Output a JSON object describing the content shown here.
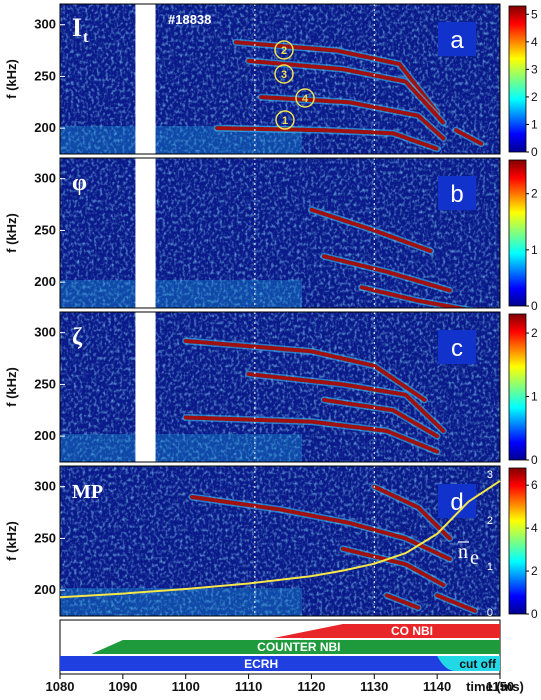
{
  "figure": {
    "shot": "#18838",
    "xlabel": "time (ms)",
    "x_ticks": [
      "1080",
      "1090",
      "1100",
      "1110",
      "1120",
      "1130",
      "1140",
      "1150"
    ],
    "y_label": "f (kHz)"
  },
  "chart_data": [
    {
      "type": "heatmap",
      "label": "a",
      "signal": "I",
      "signal_sub": "t",
      "ylabel": "f (kHz)",
      "yticks": [
        "200",
        "250",
        "300"
      ],
      "ylim": [
        175,
        320
      ],
      "xlim": [
        1080,
        1150
      ],
      "colorbar_ticks": [
        "5",
        "4",
        "3",
        "2",
        "1",
        "0"
      ],
      "colorbar_max": 5.3,
      "markers": [
        "1",
        "2",
        "3",
        "4"
      ],
      "modes": [
        {
          "t": [
            1105,
            1122,
            1133,
            1140
          ],
          "f": [
            200,
            198,
            195,
            180
          ]
        },
        {
          "t": [
            1108,
            1124,
            1134,
            1140
          ],
          "f": [
            283,
            275,
            262,
            215
          ]
        },
        {
          "t": [
            1110,
            1125,
            1135,
            1141
          ],
          "f": [
            265,
            257,
            245,
            205
          ]
        },
        {
          "t": [
            1112,
            1126,
            1137,
            1141
          ],
          "f": [
            230,
            225,
            212,
            190
          ]
        },
        {
          "t": [
            1143,
            1147
          ],
          "f": [
            198,
            185
          ]
        }
      ]
    },
    {
      "type": "heatmap",
      "label": "b",
      "signal": "φ",
      "ylabel": "f (kHz)",
      "yticks": [
        "200",
        "250",
        "300"
      ],
      "ylim": [
        175,
        320
      ],
      "xlim": [
        1080,
        1150
      ],
      "colorbar_ticks": [
        "2",
        "1",
        "0"
      ],
      "colorbar_max": 2.6,
      "modes": [
        {
          "t": [
            1120,
            1130,
            1139
          ],
          "f": [
            270,
            250,
            230
          ]
        },
        {
          "t": [
            1122,
            1132,
            1142
          ],
          "f": [
            225,
            210,
            192
          ]
        },
        {
          "t": [
            1128,
            1137,
            1146
          ],
          "f": [
            195,
            182,
            172
          ]
        }
      ]
    },
    {
      "type": "heatmap",
      "label": "c",
      "signal": "ζ",
      "ylabel": "f (kHz)",
      "yticks": [
        "200",
        "250",
        "300"
      ],
      "ylim": [
        175,
        320
      ],
      "xlim": [
        1080,
        1150
      ],
      "colorbar_ticks": [
        "2",
        "1",
        "0"
      ],
      "colorbar_max": 2.3,
      "modes": [
        {
          "t": [
            1100,
            1120,
            1130,
            1138
          ],
          "f": [
            292,
            282,
            268,
            235
          ]
        },
        {
          "t": [
            1110,
            1125,
            1135,
            1141
          ],
          "f": [
            260,
            250,
            240,
            205
          ]
        },
        {
          "t": [
            1100,
            1120,
            1132,
            1140
          ],
          "f": [
            218,
            214,
            205,
            185
          ]
        },
        {
          "t": [
            1122,
            1133,
            1140
          ],
          "f": [
            235,
            225,
            200
          ]
        }
      ]
    },
    {
      "type": "heatmap",
      "label": "d",
      "signal": "MP",
      "ylabel": "f (kHz)",
      "yticks": [
        "200",
        "250",
        "300"
      ],
      "ylim": [
        175,
        320
      ],
      "xlim": [
        1080,
        1150
      ],
      "colorbar_ticks": [
        "6",
        "4",
        "2",
        "0"
      ],
      "colorbar_max": 6.8,
      "modes": [
        {
          "t": [
            1101,
            1115,
            1126,
            1135,
            1142
          ],
          "f": [
            290,
            278,
            265,
            250,
            230
          ]
        },
        {
          "t": [
            1130,
            1137,
            1142
          ],
          "f": [
            300,
            280,
            250
          ]
        },
        {
          "t": [
            1125,
            1135,
            1141
          ],
          "f": [
            240,
            225,
            205
          ]
        },
        {
          "t": [
            1132,
            1137
          ],
          "f": [
            195,
            183
          ]
        },
        {
          "t": [
            1140,
            1146
          ],
          "f": [
            195,
            180
          ]
        }
      ],
      "overlay": {
        "label": "n",
        "label_sub": "e",
        "ylim": [
          0,
          3
        ],
        "yticks": [
          "0",
          "1",
          "2",
          "3"
        ],
        "t": [
          1080,
          1090,
          1100,
          1110,
          1120,
          1125,
          1130,
          1135,
          1140,
          1145,
          1150
        ],
        "v": [
          0.32,
          0.4,
          0.5,
          0.62,
          0.78,
          0.9,
          1.05,
          1.28,
          1.7,
          2.4,
          2.85
        ]
      }
    }
  ],
  "dashed_times": [
    1111,
    1130
  ],
  "heating": [
    {
      "name": "CO  NBI",
      "start": 1114,
      "ramp_end": 1125,
      "end": 1150,
      "color": "#e8262a"
    },
    {
      "name": "COUNTER  NBI",
      "start": 1085,
      "ramp_end": 1090,
      "end": 1150,
      "color": "#1e9a3c"
    },
    {
      "name": "ECRH",
      "start": 1080,
      "end": 1150,
      "color": "#1f3fe0",
      "tail_label": "cut off",
      "tail_start": 1140,
      "tail_color": "#22d7e6"
    }
  ]
}
